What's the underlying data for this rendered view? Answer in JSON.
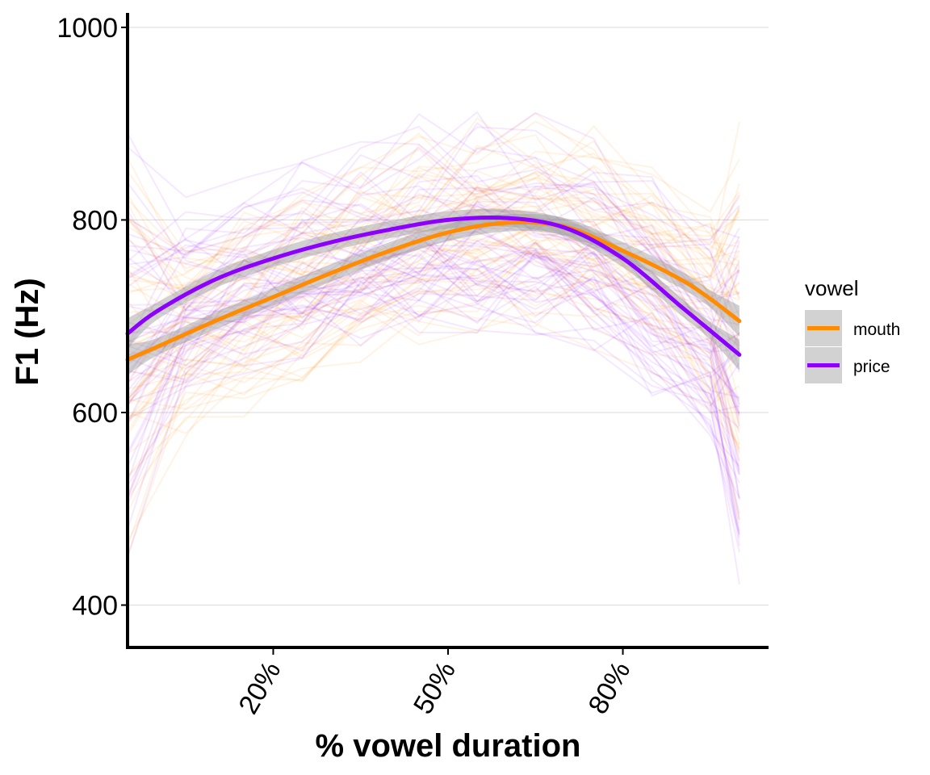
{
  "chart_data": {
    "type": "line",
    "xlabel": "% vowel duration",
    "ylabel": "F1 (Hz)",
    "x_ticks": [
      {
        "value": 20,
        "label": "20%"
      },
      {
        "value": 50,
        "label": "50%"
      },
      {
        "value": 80,
        "label": "80%"
      }
    ],
    "y_ticks": [
      {
        "value": 400,
        "label": "400"
      },
      {
        "value": 600,
        "label": "600"
      },
      {
        "value": 800,
        "label": "800"
      },
      {
        "value": 1000,
        "label": "1000"
      }
    ],
    "xlim": [
      -5,
      105
    ],
    "ylim": [
      356,
      1015
    ],
    "grid": "horizontal major lines",
    "legend": {
      "title": "vowel",
      "position": "right",
      "entries": [
        "mouth",
        "price"
      ]
    },
    "series": [
      {
        "name": "mouth",
        "color": "#FF8C00",
        "x": [
          -5,
          0,
          10,
          20,
          30,
          40,
          50,
          60,
          70,
          80,
          90,
          95,
          100
        ],
        "y": [
          655,
          668,
          695,
          720,
          745,
          768,
          787,
          797,
          793,
          768,
          738,
          718,
          695
        ]
      },
      {
        "name": "price",
        "color": "#8B00FF",
        "x": [
          -5,
          0,
          10,
          20,
          30,
          40,
          50,
          60,
          70,
          80,
          90,
          95,
          100
        ],
        "y": [
          682,
          705,
          738,
          760,
          777,
          790,
          800,
          802,
          792,
          760,
          710,
          685,
          660
        ]
      }
    ],
    "background_tokens": "many thin translucent individual token trajectories in orange (mouth) and purple (price) spanning roughly 390-990 Hz"
  }
}
